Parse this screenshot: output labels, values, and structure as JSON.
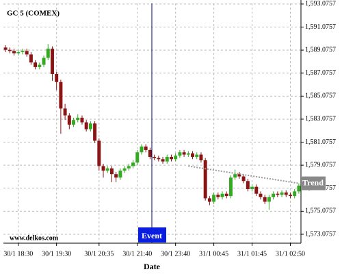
{
  "chart_data": {
    "type": "candlestick",
    "title": "GC 5 (COMEX)",
    "source": "www.delkos.com",
    "x_label": "Date",
    "categories": [
      null,
      null,
      null,
      "30/1 18:30",
      null,
      null,
      null,
      null,
      null,
      null,
      null,
      null,
      "30/1 19:30",
      null,
      null,
      null,
      null,
      null,
      null,
      null,
      null,
      null,
      "30/1 20:35",
      null,
      null,
      null,
      null,
      null,
      null,
      null,
      null,
      "30/1 21:40",
      null,
      null,
      null,
      null,
      null,
      null,
      null,
      null,
      "30/1 23:40",
      null,
      null,
      null,
      null,
      null,
      null,
      null,
      null,
      "31/1 00:45",
      null,
      null,
      null,
      null,
      null,
      null,
      null,
      null,
      "31/1 01:45",
      null,
      null,
      null,
      null,
      null,
      null,
      null,
      null,
      "31/1 02:50",
      null,
      null
    ],
    "open": [
      1589.3,
      1589.1,
      1589.0,
      1588.8,
      1588.9,
      1589.0,
      1588.7,
      1588.0,
      1587.6,
      1587.8,
      1588.4,
      1589.2,
      1587.0,
      1586.3,
      1584.0,
      1583.4,
      1582.6,
      1583.0,
      1583.2,
      1582.8,
      1582.2,
      1582.7,
      1581.2,
      1579.0,
      1578.6,
      1578.8,
      1578.3,
      1578.0,
      1578.6,
      1578.8,
      1579.0,
      1579.3,
      1580.2,
      1580.7,
      1580.4,
      1579.8,
      1579.7,
      1579.6,
      1579.4,
      1579.8,
      1579.6,
      1579.9,
      1580.2,
      1580.0,
      1580.1,
      1579.8,
      1580.0,
      1579.5,
      1576.2,
      1575.9,
      1576.5,
      1576.3,
      1576.6,
      1576.4,
      1578.0,
      1578.3,
      1578.1,
      1577.7,
      1577.0,
      1577.2,
      1576.6,
      1576.3,
      1575.9,
      1576.3,
      1576.6,
      1576.5,
      1576.7,
      1576.5,
      1576.4,
      1576.8
    ],
    "high": [
      1589.5,
      1589.3,
      1589.2,
      1589.1,
      1589.2,
      1589.2,
      1588.9,
      1588.2,
      1588.0,
      1588.6,
      1589.6,
      1589.4,
      1587.2,
      1586.5,
      1584.4,
      1583.6,
      1583.2,
      1583.5,
      1583.4,
      1583.0,
      1582.9,
      1582.9,
      1581.4,
      1579.2,
      1579.0,
      1579.0,
      1578.5,
      1578.8,
      1579.0,
      1579.2,
      1579.5,
      1580.4,
      1580.9,
      1580.9,
      1580.6,
      1580.0,
      1579.9,
      1579.8,
      1580.0,
      1580.0,
      1580.1,
      1580.4,
      1580.4,
      1580.3,
      1580.3,
      1580.2,
      1580.2,
      1579.7,
      1576.4,
      1576.7,
      1576.7,
      1576.8,
      1576.8,
      1578.2,
      1578.7,
      1578.5,
      1578.3,
      1577.9,
      1577.4,
      1577.4,
      1576.8,
      1576.5,
      1576.5,
      1576.8,
      1576.8,
      1576.9,
      1576.9,
      1576.7,
      1577.0,
      1577.5
    ],
    "low": [
      1588.9,
      1588.8,
      1588.6,
      1588.6,
      1588.7,
      1588.5,
      1587.8,
      1587.4,
      1587.4,
      1587.6,
      1588.2,
      1586.4,
      1585.6,
      1581.8,
      1583.0,
      1582.2,
      1582.4,
      1582.8,
      1582.6,
      1582.0,
      1582.0,
      1581.0,
      1578.6,
      1578.0,
      1578.4,
      1577.6,
      1577.6,
      1577.8,
      1578.4,
      1578.6,
      1578.8,
      1579.1,
      1580.0,
      1580.2,
      1579.6,
      1579.5,
      1579.4,
      1579.2,
      1579.2,
      1579.4,
      1579.4,
      1579.7,
      1579.8,
      1579.8,
      1579.6,
      1579.6,
      1579.3,
      1576.0,
      1575.6,
      1575.7,
      1576.1,
      1576.1,
      1576.2,
      1576.2,
      1577.8,
      1577.9,
      1577.5,
      1576.8,
      1576.8,
      1576.4,
      1576.1,
      1575.7,
      1575.2,
      1576.1,
      1576.3,
      1576.3,
      1576.3,
      1576.2,
      1576.2,
      1576.6
    ],
    "close": [
      1589.1,
      1589.0,
      1588.8,
      1588.9,
      1589.0,
      1588.7,
      1588.0,
      1587.6,
      1587.8,
      1588.4,
      1589.2,
      1587.0,
      1586.3,
      1584.0,
      1583.4,
      1582.6,
      1583.0,
      1583.2,
      1582.8,
      1582.2,
      1582.7,
      1581.2,
      1579.0,
      1578.6,
      1578.8,
      1578.3,
      1578.0,
      1578.6,
      1578.8,
      1579.0,
      1579.3,
      1580.2,
      1580.7,
      1580.4,
      1579.8,
      1579.7,
      1579.6,
      1579.4,
      1579.8,
      1579.6,
      1579.9,
      1580.2,
      1580.0,
      1580.1,
      1579.8,
      1580.0,
      1579.5,
      1576.2,
      1575.9,
      1576.5,
      1576.3,
      1576.6,
      1576.4,
      1578.0,
      1578.3,
      1578.1,
      1577.7,
      1577.0,
      1577.2,
      1576.6,
      1576.3,
      1575.9,
      1576.3,
      1576.6,
      1576.5,
      1576.7,
      1576.5,
      1576.4,
      1576.8,
      1577.3
    ],
    "up_color": "#33aa22",
    "down_color": "#8b1515",
    "ylim": [
      1572.3,
      1593.13
    ],
    "yticks": [
      {
        "value": 1573.0757,
        "label": "1,573.0757"
      },
      {
        "value": 1575.0757,
        "label": "1,575.0757"
      },
      {
        "value": 1577.0757,
        "label": "1,577.0757"
      },
      {
        "value": 1579.0757,
        "label": "1,579.0757"
      },
      {
        "value": 1581.0757,
        "label": "1,581.0757"
      },
      {
        "value": 1583.0757,
        "label": "1,583.0757"
      },
      {
        "value": 1585.0757,
        "label": "1,585.0757"
      },
      {
        "value": 1587.0757,
        "label": "1,587.0757"
      },
      {
        "value": 1589.0757,
        "label": "1,589.0757"
      },
      {
        "value": 1591.0757,
        "label": "1,591.0757"
      },
      {
        "value": 1593.0757,
        "label": "1,593.0757"
      }
    ],
    "grid": true,
    "event_label": "Event",
    "trend": {
      "label": "Trend",
      "start": 1579.0,
      "end": 1577.5
    }
  }
}
